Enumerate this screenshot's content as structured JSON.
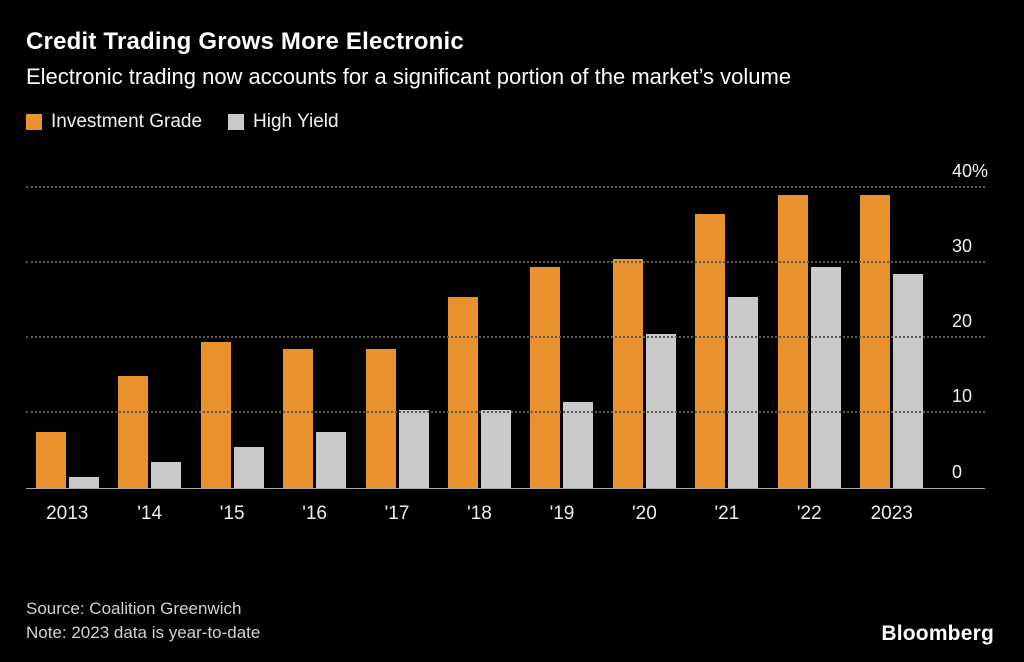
{
  "chart_data": {
    "type": "bar",
    "title": "Credit Trading Grows More Electronic",
    "subtitle": "Electronic trading now accounts for a significant portion of the market’s volume",
    "categories": [
      "2013",
      "'14",
      "'15",
      "'16",
      "'17",
      "'18",
      "'19",
      "'20",
      "'21",
      "'22",
      "2023"
    ],
    "series": [
      {
        "name": "Investment Grade",
        "color": "#E8912D",
        "values": [
          7.5,
          15,
          19.5,
          18.5,
          18.5,
          25.5,
          29.5,
          30.5,
          36.5,
          39,
          39
        ]
      },
      {
        "name": "High Yield",
        "color": "#C9C9C9",
        "values": [
          1.5,
          3.5,
          5.5,
          7.5,
          10.5,
          10.5,
          11.5,
          20.5,
          25.5,
          29.5,
          28.5
        ]
      }
    ],
    "ylim": [
      0,
      42.5
    ],
    "yticks": [
      {
        "value": 0,
        "label": "0"
      },
      {
        "value": 10,
        "label": "10"
      },
      {
        "value": 20,
        "label": "20"
      },
      {
        "value": 30,
        "label": "30"
      },
      {
        "value": 40,
        "label": "40%"
      }
    ],
    "grid": "dotted-horizontal",
    "legend_position": "top-left"
  },
  "footer": {
    "source": "Source: Coalition Greenwich",
    "note": "Note: 2023 data is year-to-date",
    "brand": "Bloomberg"
  },
  "colors": {
    "background": "#000000",
    "grid": "#5C5C5C",
    "axis": "#A8A8A8",
    "investment_grade": "#E8912D",
    "high_yield": "#C9C9C9"
  }
}
